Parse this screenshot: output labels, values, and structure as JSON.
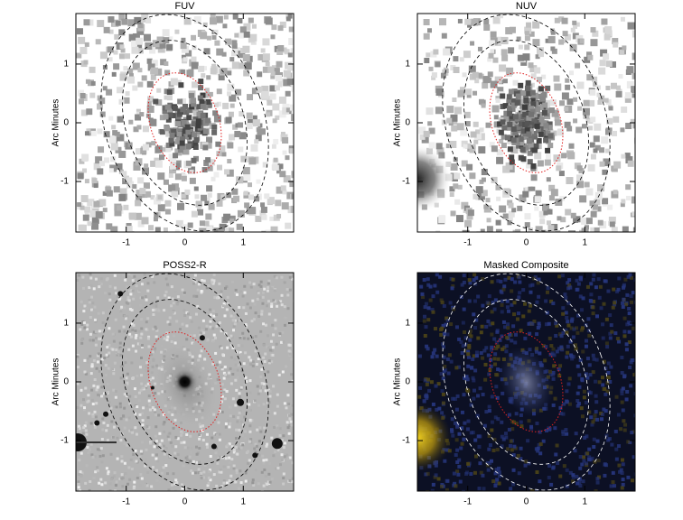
{
  "chart_data": [
    {
      "type": "image",
      "title": "FUV",
      "ylabel": "Arc Minutes",
      "xlim": [
        -1.86,
        1.86
      ],
      "ylim": [
        -1.86,
        1.86
      ],
      "xticks": [
        -1,
        0,
        1
      ],
      "yticks": [
        -1,
        0,
        1
      ]
    },
    {
      "type": "image",
      "title": "NUV",
      "ylabel": "Arc Minutes",
      "xlim": [
        -1.86,
        1.86
      ],
      "ylim": [
        -1.86,
        1.86
      ],
      "xticks": [
        -1,
        0,
        1
      ],
      "yticks": [
        -1,
        0,
        1
      ]
    },
    {
      "type": "image",
      "title": "POSS2-R",
      "ylabel": "Arc Minutes",
      "xlim": [
        -1.86,
        1.86
      ],
      "ylim": [
        -1.86,
        1.86
      ],
      "xticks": [
        -1,
        0,
        1
      ],
      "yticks": [
        -1,
        0,
        1
      ]
    },
    {
      "type": "image",
      "title": "Masked Composite",
      "ylabel": "Arc Minutes",
      "xlim": [
        -1.86,
        1.86
      ],
      "ylim": [
        -1.86,
        1.86
      ],
      "xticks": [
        -1,
        0,
        1
      ],
      "yticks": [
        -1,
        0,
        1
      ]
    }
  ]
}
